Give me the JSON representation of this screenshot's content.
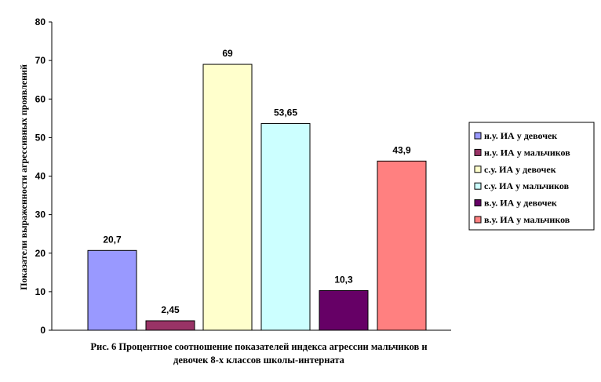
{
  "chart_data": {
    "type": "bar",
    "categories": [
      "н.у. ИА у девочек",
      "н.у. ИА у мальчиков",
      "с.у. ИА у девочек",
      "с.у. ИА у мальчиков",
      "в.у. ИА у девочек",
      "в.у. ИА у мальчиков"
    ],
    "values": [
      20.7,
      2.45,
      69,
      53.65,
      10.3,
      43.9
    ],
    "data_labels": [
      "20,7",
      "2,45",
      "69",
      "53,65",
      "10,3",
      "43,9"
    ],
    "colors": [
      "#9999ff",
      "#993366",
      "#ffffcc",
      "#ccffff",
      "#660066",
      "#ff8080"
    ],
    "ylabel": "Показатели выраженности агрессивных проявлений",
    "ylim": [
      0,
      80
    ],
    "yticks": [
      0,
      10,
      20,
      30,
      40,
      50,
      60,
      70,
      80
    ],
    "legend_position": "right",
    "grid": false
  },
  "caption": {
    "line1": "Рис. 6 Процентное соотношение показателей индекса агрессии мальчиков и",
    "line2": "девочек 8-х классов школы-интерната"
  }
}
